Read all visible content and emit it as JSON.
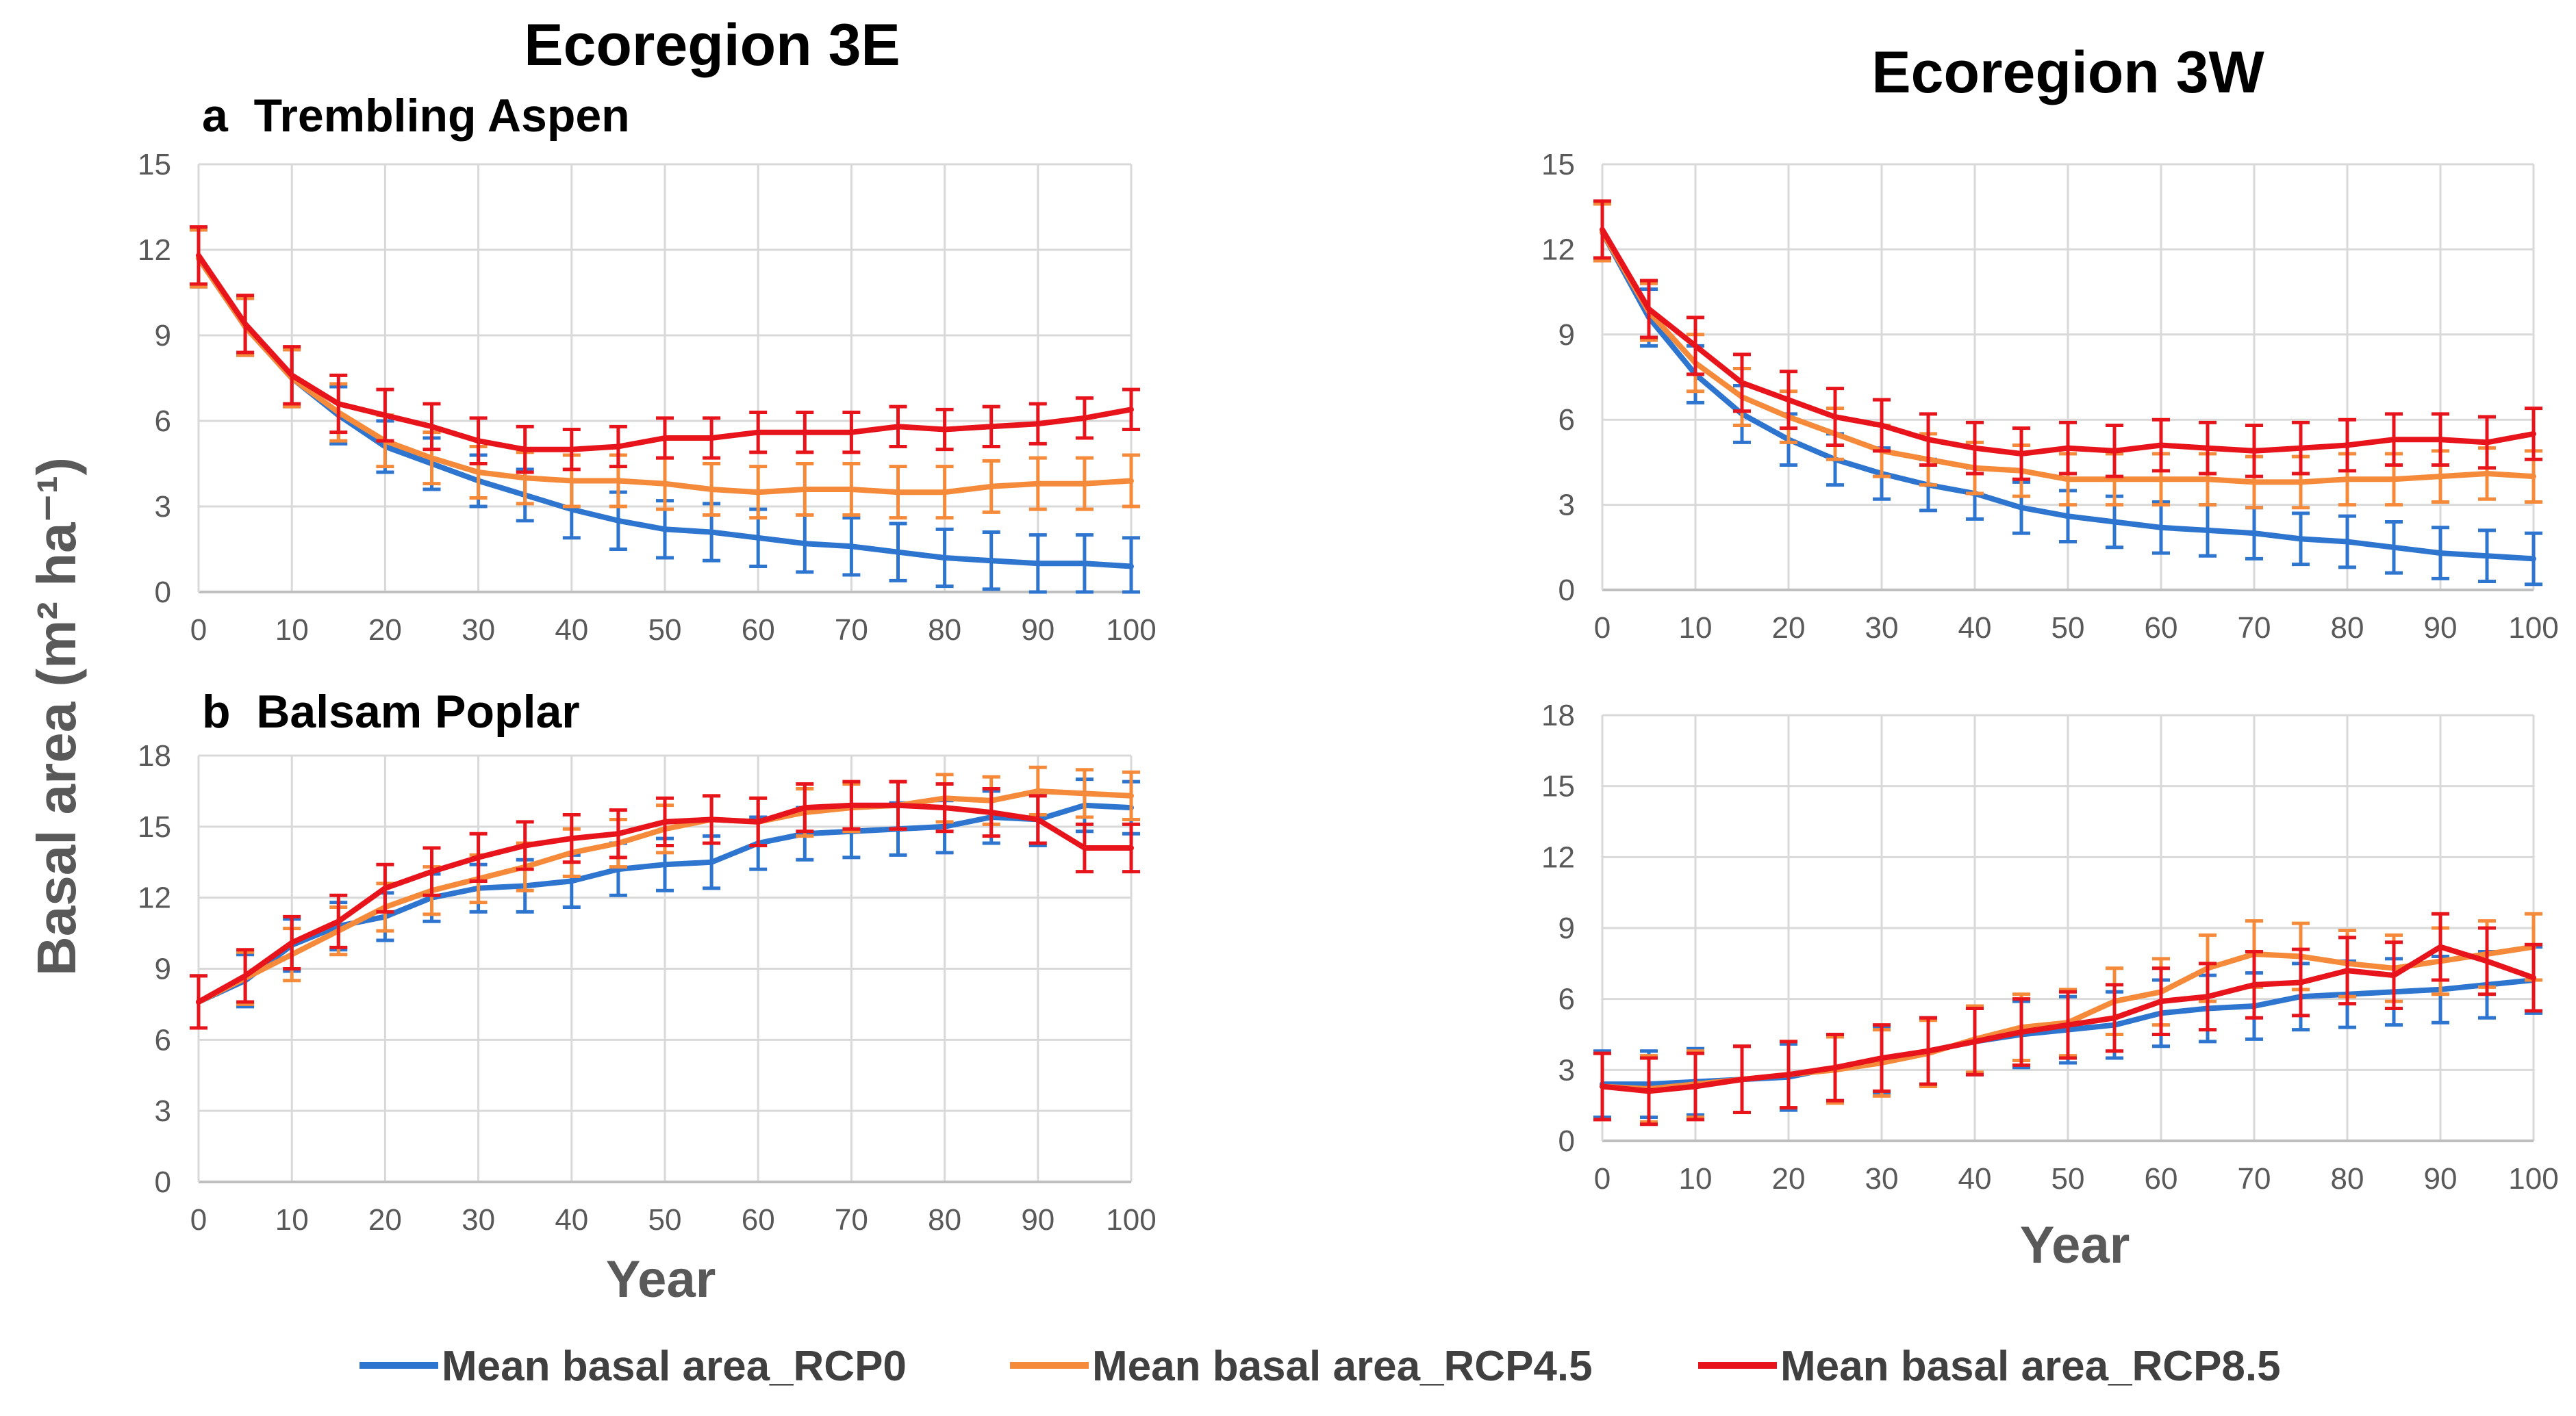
{
  "figure": {
    "ylabel": "Basal area (m² ha⁻¹)",
    "col_titles": [
      "Ecoregion 3E",
      "Ecoregion 3W"
    ]
  },
  "legend": [
    {
      "name": "Mean basal area_RCP0",
      "color": "#2E75D0"
    },
    {
      "name": "Mean basal area_RCP4.5",
      "color": "#F58A3A"
    },
    {
      "name": "Mean basal area_RCP8.5",
      "color": "#E8141C"
    }
  ],
  "chart_data": [
    {
      "type": "line",
      "id": "a3E",
      "title": "a  Trembling Aspen",
      "xlabel": "",
      "ylabel": "Basal area (m² ha⁻¹)",
      "xlim": [
        0,
        100
      ],
      "ylim": [
        0,
        15
      ],
      "xticks": [
        0,
        10,
        20,
        30,
        40,
        50,
        60,
        70,
        80,
        90,
        100
      ],
      "yticks": [
        0,
        3,
        6,
        9,
        12,
        15
      ],
      "x": [
        0,
        5,
        10,
        15,
        20,
        25,
        30,
        35,
        40,
        45,
        50,
        55,
        60,
        65,
        70,
        75,
        80,
        85,
        90,
        95,
        100
      ],
      "series": [
        {
          "name": "Mean basal area_RCP0",
          "color": "#2E75D0",
          "values": [
            11.7,
            9.3,
            7.5,
            6.2,
            5.1,
            4.5,
            3.9,
            3.4,
            2.9,
            2.5,
            2.2,
            2.1,
            1.9,
            1.7,
            1.6,
            1.4,
            1.2,
            1.1,
            1.0,
            1.0,
            0.9
          ],
          "err": [
            1.0,
            1.0,
            1.0,
            1.0,
            0.9,
            0.9,
            0.9,
            0.9,
            1.0,
            1.0,
            1.0,
            1.0,
            1.0,
            1.0,
            1.0,
            1.0,
            1.0,
            1.0,
            1.0,
            1.0,
            1.0
          ]
        },
        {
          "name": "Mean basal area_RCP4.5",
          "color": "#F58A3A",
          "values": [
            11.7,
            9.3,
            7.5,
            6.3,
            5.3,
            4.7,
            4.2,
            4.0,
            3.9,
            3.9,
            3.8,
            3.6,
            3.5,
            3.6,
            3.6,
            3.5,
            3.5,
            3.7,
            3.8,
            3.8,
            3.9
          ],
          "err": [
            1.0,
            1.0,
            1.0,
            1.0,
            0.9,
            0.9,
            0.9,
            0.9,
            0.9,
            0.9,
            0.9,
            0.9,
            0.9,
            0.9,
            0.9,
            0.9,
            0.9,
            0.9,
            0.9,
            0.9,
            0.9
          ]
        },
        {
          "name": "Mean basal area_RCP8.5",
          "color": "#E8141C",
          "values": [
            11.8,
            9.4,
            7.6,
            6.6,
            6.2,
            5.8,
            5.3,
            5.0,
            5.0,
            5.1,
            5.4,
            5.4,
            5.6,
            5.6,
            5.6,
            5.8,
            5.7,
            5.8,
            5.9,
            6.1,
            6.4
          ],
          "err": [
            1.0,
            1.0,
            1.0,
            1.0,
            0.9,
            0.8,
            0.8,
            0.8,
            0.7,
            0.7,
            0.7,
            0.7,
            0.7,
            0.7,
            0.7,
            0.7,
            0.7,
            0.7,
            0.7,
            0.7,
            0.7
          ]
        }
      ]
    },
    {
      "type": "line",
      "id": "a3W",
      "title": "",
      "xlabel": "",
      "ylabel": "",
      "xlim": [
        0,
        100
      ],
      "ylim": [
        0,
        15
      ],
      "xticks": [
        0,
        10,
        20,
        30,
        40,
        50,
        60,
        70,
        80,
        90,
        100
      ],
      "yticks": [
        0,
        3,
        6,
        9,
        12,
        15
      ],
      "x": [
        0,
        5,
        10,
        15,
        20,
        25,
        30,
        35,
        40,
        45,
        50,
        55,
        60,
        65,
        70,
        75,
        80,
        85,
        90,
        95,
        100
      ],
      "series": [
        {
          "name": "Mean basal area_RCP0",
          "color": "#2E75D0",
          "values": [
            12.6,
            9.6,
            7.6,
            6.2,
            5.3,
            4.6,
            4.1,
            3.7,
            3.4,
            2.9,
            2.6,
            2.4,
            2.2,
            2.1,
            2.0,
            1.8,
            1.7,
            1.5,
            1.3,
            1.2,
            1.1
          ],
          "err": [
            1.0,
            1.0,
            1.0,
            1.0,
            0.9,
            0.9,
            0.9,
            0.9,
            0.9,
            0.9,
            0.9,
            0.9,
            0.9,
            0.9,
            0.9,
            0.9,
            0.9,
            0.9,
            0.9,
            0.9,
            0.9
          ]
        },
        {
          "name": "Mean basal area_RCP4.5",
          "color": "#F58A3A",
          "values": [
            12.6,
            9.8,
            8.0,
            6.8,
            6.1,
            5.5,
            4.9,
            4.6,
            4.3,
            4.2,
            3.9,
            3.9,
            3.9,
            3.9,
            3.8,
            3.8,
            3.9,
            3.9,
            4.0,
            4.1,
            4.0
          ],
          "err": [
            1.0,
            1.0,
            1.0,
            1.0,
            0.9,
            0.9,
            0.9,
            0.9,
            0.9,
            0.9,
            0.9,
            0.9,
            0.9,
            0.9,
            0.9,
            0.9,
            0.9,
            0.9,
            0.9,
            0.9,
            0.9
          ]
        },
        {
          "name": "Mean basal area_RCP8.5",
          "color": "#E8141C",
          "values": [
            12.7,
            9.9,
            8.6,
            7.3,
            6.7,
            6.1,
            5.8,
            5.3,
            5.0,
            4.8,
            5.0,
            4.9,
            5.1,
            5.0,
            4.9,
            5.0,
            5.1,
            5.3,
            5.3,
            5.2,
            5.5
          ],
          "err": [
            1.0,
            1.0,
            1.0,
            1.0,
            1.0,
            1.0,
            0.9,
            0.9,
            0.9,
            0.9,
            0.9,
            0.9,
            0.9,
            0.9,
            0.9,
            0.9,
            0.9,
            0.9,
            0.9,
            0.9,
            0.9
          ]
        }
      ]
    },
    {
      "type": "line",
      "id": "b3E",
      "title": "b  Balsam Poplar",
      "xlabel": "Year",
      "ylabel": "Basal area (m² ha⁻¹)",
      "xlim": [
        0,
        100
      ],
      "ylim": [
        0,
        18
      ],
      "xticks": [
        0,
        10,
        20,
        30,
        40,
        50,
        60,
        70,
        80,
        90,
        100
      ],
      "yticks": [
        0,
        3,
        6,
        9,
        12,
        15,
        18
      ],
      "x": [
        0,
        5,
        10,
        15,
        20,
        25,
        30,
        35,
        40,
        45,
        50,
        55,
        60,
        65,
        70,
        75,
        80,
        85,
        90,
        95,
        100
      ],
      "series": [
        {
          "name": "Mean basal area_RCP0",
          "color": "#2E75D0",
          "values": [
            7.6,
            8.5,
            10.0,
            10.8,
            11.2,
            12.0,
            12.4,
            12.5,
            12.7,
            13.2,
            13.4,
            13.5,
            14.3,
            14.7,
            14.8,
            14.9,
            15.0,
            15.4,
            15.3,
            15.9,
            15.8
          ],
          "err": [
            1.1,
            1.1,
            1.1,
            1.0,
            1.0,
            1.0,
            1.0,
            1.1,
            1.1,
            1.1,
            1.1,
            1.1,
            1.1,
            1.1,
            1.1,
            1.1,
            1.1,
            1.1,
            1.1,
            1.1,
            1.1
          ]
        },
        {
          "name": "Mean basal area_RCP4.5",
          "color": "#F58A3A",
          "values": [
            7.6,
            8.6,
            9.6,
            10.6,
            11.6,
            12.3,
            12.8,
            13.3,
            13.9,
            14.3,
            14.9,
            15.3,
            15.2,
            15.6,
            15.8,
            15.9,
            16.2,
            16.1,
            16.5,
            16.4,
            16.3
          ],
          "err": [
            1.1,
            1.1,
            1.1,
            1.0,
            1.0,
            1.0,
            1.0,
            1.0,
            1.0,
            1.0,
            1.0,
            1.0,
            1.0,
            1.0,
            1.0,
            1.0,
            1.0,
            1.0,
            1.0,
            1.0,
            1.0
          ]
        },
        {
          "name": "Mean basal area_RCP8.5",
          "color": "#E8141C",
          "values": [
            7.6,
            8.7,
            10.1,
            11.0,
            12.4,
            13.1,
            13.7,
            14.2,
            14.5,
            14.7,
            15.2,
            15.3,
            15.2,
            15.8,
            15.9,
            15.9,
            15.8,
            15.6,
            15.3,
            14.1,
            14.1
          ],
          "err": [
            1.1,
            1.1,
            1.1,
            1.1,
            1.0,
            1.0,
            1.0,
            1.0,
            1.0,
            1.0,
            1.0,
            1.0,
            1.0,
            1.0,
            1.0,
            1.0,
            1.0,
            1.0,
            1.0,
            1.0,
            1.0
          ]
        }
      ]
    },
    {
      "type": "line",
      "id": "b3W",
      "title": "",
      "xlabel": "Year",
      "ylabel": "",
      "xlim": [
        0,
        100
      ],
      "ylim": [
        0,
        18
      ],
      "xticks": [
        0,
        10,
        20,
        30,
        40,
        50,
        60,
        70,
        80,
        90,
        100
      ],
      "yticks": [
        0,
        3,
        6,
        9,
        12,
        15,
        18
      ],
      "x": [
        0,
        5,
        10,
        15,
        20,
        25,
        30,
        35,
        40,
        45,
        50,
        55,
        60,
        65,
        70,
        75,
        80,
        85,
        90,
        95,
        100
      ],
      "series": [
        {
          "name": "Mean basal area_RCP0",
          "color": "#2E75D0",
          "values": [
            2.4,
            2.4,
            2.5,
            2.6,
            2.7,
            3.1,
            3.4,
            3.8,
            4.2,
            4.5,
            4.7,
            4.9,
            5.4,
            5.6,
            5.7,
            6.1,
            6.2,
            6.3,
            6.4,
            6.6,
            6.8
          ],
          "err": [
            1.4,
            1.4,
            1.4,
            1.4,
            1.4,
            1.4,
            1.4,
            1.4,
            1.4,
            1.4,
            1.4,
            1.4,
            1.4,
            1.4,
            1.4,
            1.4,
            1.4,
            1.4,
            1.4,
            1.4,
            1.4
          ]
        },
        {
          "name": "Mean basal area_RCP4.5",
          "color": "#F58A3A",
          "values": [
            2.3,
            2.2,
            2.4,
            2.6,
            2.8,
            3.0,
            3.3,
            3.7,
            4.3,
            4.8,
            5.0,
            5.9,
            6.3,
            7.3,
            7.9,
            7.8,
            7.5,
            7.3,
            7.6,
            7.9,
            8.2
          ],
          "err": [
            1.4,
            1.4,
            1.4,
            1.4,
            1.4,
            1.4,
            1.4,
            1.4,
            1.4,
            1.4,
            1.4,
            1.4,
            1.4,
            1.4,
            1.4,
            1.4,
            1.4,
            1.4,
            1.4,
            1.4,
            1.4
          ]
        },
        {
          "name": "Mean basal area_RCP8.5",
          "color": "#E8141C",
          "values": [
            2.3,
            2.1,
            2.3,
            2.6,
            2.8,
            3.1,
            3.5,
            3.8,
            4.2,
            4.6,
            4.9,
            5.2,
            5.9,
            6.1,
            6.6,
            6.7,
            7.2,
            7.0,
            8.2,
            7.6,
            6.9
          ],
          "err": [
            1.4,
            1.4,
            1.4,
            1.4,
            1.4,
            1.4,
            1.4,
            1.4,
            1.4,
            1.4,
            1.4,
            1.4,
            1.4,
            1.4,
            1.4,
            1.4,
            1.4,
            1.4,
            1.4,
            1.4,
            1.4
          ]
        }
      ]
    }
  ]
}
